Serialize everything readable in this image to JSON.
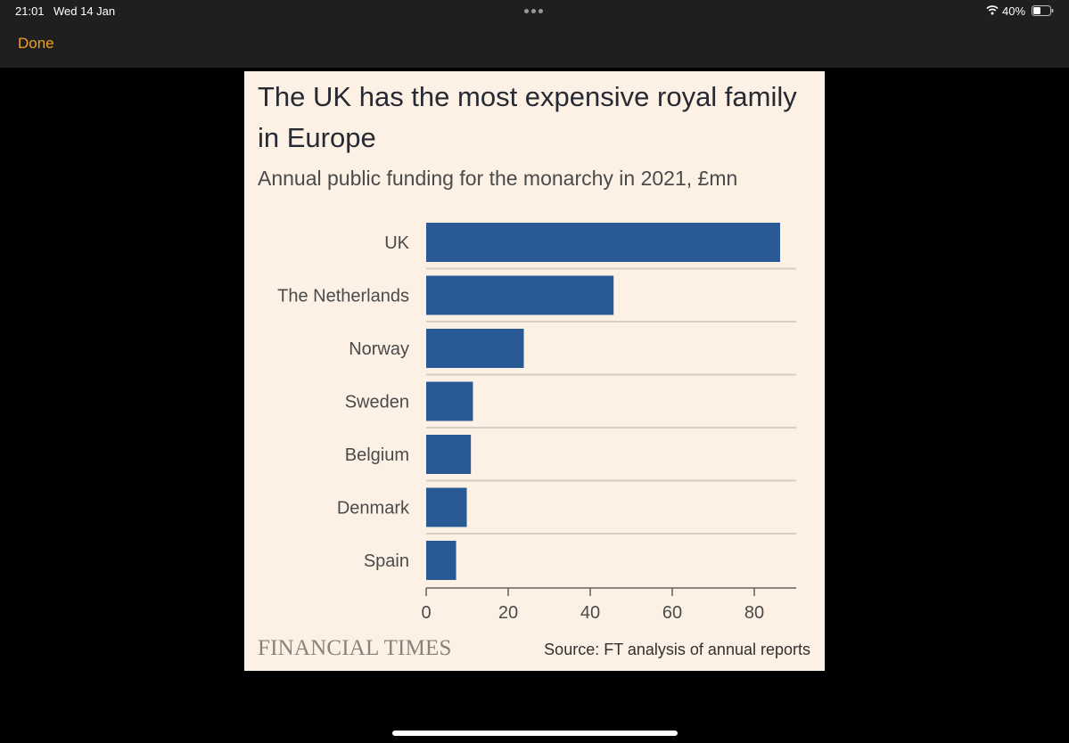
{
  "status_bar": {
    "time": "21:01",
    "date": "Wed 14 Jan",
    "battery": "40%"
  },
  "nav": {
    "done_label": "Done"
  },
  "colors": {
    "accent": "#f0a020",
    "bar": "#2a5a95",
    "chart_background": "#fdf1e6"
  },
  "icons": [
    "more-dots-icon",
    "wifi-icon",
    "battery-icon"
  ],
  "chart": {
    "title": "The UK has the most expensive royal family in Europe",
    "subtitle": "Annual public funding for the monarchy in 2021, £mn",
    "brand": "FINANCIAL TIMES",
    "source": "Source: FT analysis of annual reports"
  },
  "chart_data": {
    "type": "bar",
    "orientation": "horizontal",
    "categories": [
      "UK",
      "The Netherlands",
      "Norway",
      "Sweden",
      "Belgium",
      "Denmark",
      "Spain"
    ],
    "values": [
      86.3,
      45.7,
      23.8,
      11.4,
      10.9,
      9.9,
      7.3
    ],
    "title": "The UK has the most expensive royal family in Europe",
    "subtitle": "Annual public funding for the monarchy in 2021, £mn",
    "xlim": [
      0,
      90
    ],
    "xticks": [
      0,
      20,
      40,
      60,
      80
    ],
    "grid": true,
    "legend": "none"
  }
}
